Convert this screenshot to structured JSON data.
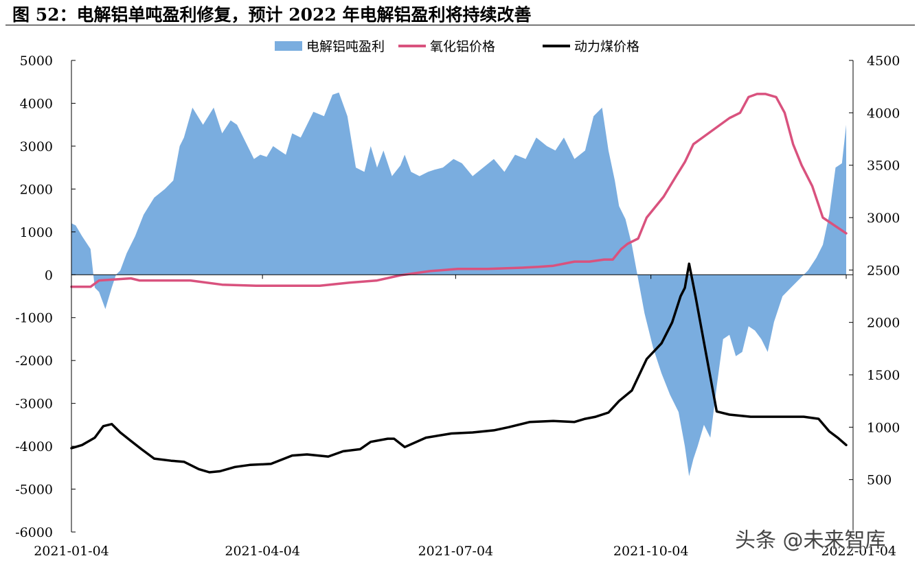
{
  "figure_title": "图 52：电解铝单吨盈利修复，预计 2022 年电解铝盈利将持续改善",
  "watermark": "头条 @未来智库",
  "colors": {
    "profit": "#7aaddf",
    "alumina": "#d9527e",
    "coal": "#000000"
  },
  "chart_data": {
    "type": "area+line",
    "legend_position": "top-center",
    "grid": false,
    "x_ticks": [
      "2021-01-04",
      "2021-04-04",
      "2021-07-04",
      "2021-10-04",
      "2022-01-04"
    ],
    "left_axis": {
      "ylim": [
        -6000,
        5000
      ],
      "ticks": [
        5000,
        4000,
        3000,
        2000,
        1000,
        0,
        -1000,
        -2000,
        -3000,
        -4000,
        -5000,
        -6000
      ]
    },
    "right_axis": {
      "ylim": [
        0,
        4500
      ],
      "ticks": [
        4500,
        4000,
        3500,
        3000,
        2500,
        2000,
        1500,
        1000,
        500,
        0
      ],
      "visible_ticks": [
        4500,
        4000,
        3500,
        3000,
        2500,
        2000,
        1500,
        1000,
        500
      ]
    },
    "series": [
      {
        "name": "电解铝吨盈利",
        "type": "area",
        "axis": "left",
        "x": [
          "2021-01-04",
          "2021-01-06",
          "2021-01-09",
          "2021-01-13",
          "2021-01-15",
          "2021-01-17",
          "2021-01-20",
          "2021-01-23",
          "2021-01-25",
          "2021-01-27",
          "2021-01-30",
          "2021-02-03",
          "2021-02-07",
          "2021-02-12",
          "2021-02-17",
          "2021-02-21",
          "2021-02-24",
          "2021-02-26",
          "2021-03-02",
          "2021-03-07",
          "2021-03-12",
          "2021-03-16",
          "2021-03-20",
          "2021-03-23",
          "2021-03-26",
          "2021-03-28",
          "2021-03-31",
          "2021-04-03",
          "2021-04-06",
          "2021-04-09",
          "2021-04-12",
          "2021-04-15",
          "2021-04-18",
          "2021-04-22",
          "2021-04-25",
          "2021-04-28",
          "2021-05-03",
          "2021-05-07",
          "2021-05-10",
          "2021-05-14",
          "2021-05-18",
          "2021-05-22",
          "2021-05-25",
          "2021-05-28",
          "2021-05-31",
          "2021-06-04",
          "2021-06-08",
          "2021-06-10",
          "2021-06-13",
          "2021-06-17",
          "2021-06-21",
          "2021-06-24",
          "2021-06-28",
          "2021-07-03",
          "2021-07-07",
          "2021-07-12",
          "2021-07-17",
          "2021-07-22",
          "2021-07-27",
          "2021-08-01",
          "2021-08-06",
          "2021-08-11",
          "2021-08-16",
          "2021-08-20",
          "2021-08-24",
          "2021-08-29",
          "2021-09-03",
          "2021-09-07",
          "2021-09-11",
          "2021-09-14",
          "2021-09-17",
          "2021-09-19",
          "2021-09-22",
          "2021-09-25",
          "2021-09-28",
          "2021-10-01",
          "2021-10-05",
          "2021-10-09",
          "2021-10-13",
          "2021-10-17",
          "2021-10-20",
          "2021-10-22",
          "2021-10-24",
          "2021-10-26",
          "2021-10-29",
          "2021-11-01",
          "2021-11-04",
          "2021-11-07",
          "2021-11-10",
          "2021-11-13",
          "2021-11-16",
          "2021-11-19",
          "2021-11-22",
          "2021-11-25",
          "2021-11-28",
          "2021-12-01",
          "2021-12-05",
          "2021-12-09",
          "2021-12-13",
          "2021-12-17",
          "2021-12-21",
          "2021-12-24",
          "2021-12-27",
          "2021-12-30",
          "2022-01-02",
          "2022-01-04"
        ],
        "values": [
          1200,
          1150,
          900,
          600,
          -300,
          -400,
          -800,
          -300,
          0,
          100,
          500,
          900,
          1400,
          1800,
          2000,
          2200,
          3000,
          3200,
          3900,
          3500,
          3900,
          3300,
          3600,
          3500,
          3200,
          3000,
          2700,
          2800,
          2750,
          3000,
          2900,
          2800,
          3300,
          3200,
          3500,
          3800,
          3700,
          4200,
          4250,
          3700,
          2500,
          2400,
          3000,
          2500,
          2900,
          2300,
          2550,
          2800,
          2400,
          2300,
          2400,
          2450,
          2500,
          2700,
          2600,
          2300,
          2500,
          2700,
          2400,
          2800,
          2700,
          3200,
          3000,
          2900,
          3200,
          2700,
          2900,
          3700,
          3900,
          2900,
          2200,
          1600,
          1300,
          700,
          -100,
          -900,
          -1700,
          -2300,
          -2800,
          -3200,
          -4000,
          -4700,
          -4300,
          -4000,
          -3500,
          -3800,
          -2600,
          -1500,
          -1400,
          -1900,
          -1800,
          -1200,
          -1300,
          -1500,
          -1800,
          -1100,
          -500,
          -300,
          -100,
          100,
          400,
          700,
          1400,
          2500,
          2600,
          3500
        ]
      },
      {
        "name": "氧化铝价格",
        "type": "line",
        "axis": "right",
        "x": [
          "2021-01-04",
          "2021-01-13",
          "2021-01-17",
          "2021-02-01",
          "2021-02-05",
          "2021-03-01",
          "2021-03-16",
          "2021-04-01",
          "2021-04-15",
          "2021-05-01",
          "2021-05-15",
          "2021-05-28",
          "2021-06-08",
          "2021-06-22",
          "2021-07-05",
          "2021-07-19",
          "2021-08-02",
          "2021-08-12",
          "2021-08-19",
          "2021-08-29",
          "2021-09-05",
          "2021-09-12",
          "2021-09-16",
          "2021-09-20",
          "2021-09-23",
          "2021-09-28",
          "2021-10-02",
          "2021-10-10",
          "2021-10-16",
          "2021-10-20",
          "2021-10-24",
          "2021-11-10",
          "2021-11-15",
          "2021-11-19",
          "2021-11-23",
          "2021-11-27",
          "2021-12-02",
          "2021-12-06",
          "2021-12-10",
          "2021-12-14",
          "2021-12-19",
          "2021-12-24",
          "2022-01-04"
        ],
        "values": [
          2340,
          2340,
          2400,
          2420,
          2400,
          2400,
          2360,
          2350,
          2350,
          2350,
          2380,
          2400,
          2450,
          2490,
          2510,
          2510,
          2520,
          2530,
          2540,
          2580,
          2580,
          2600,
          2600,
          2700,
          2750,
          2800,
          3000,
          3200,
          3400,
          3530,
          3700,
          3950,
          4000,
          4150,
          4180,
          4180,
          4150,
          4000,
          3700,
          3500,
          3300,
          3000,
          2850
        ]
      },
      {
        "name": "动力煤价格",
        "type": "line",
        "axis": "right",
        "x": [
          "2021-01-04",
          "2021-01-09",
          "2021-01-15",
          "2021-01-19",
          "2021-01-23",
          "2021-01-27",
          "2021-02-01",
          "2021-02-06",
          "2021-02-12",
          "2021-02-20",
          "2021-02-26",
          "2021-03-05",
          "2021-03-10",
          "2021-03-15",
          "2021-03-22",
          "2021-03-29",
          "2021-04-08",
          "2021-04-18",
          "2021-04-25",
          "2021-05-05",
          "2021-05-12",
          "2021-05-20",
          "2021-05-25",
          "2021-06-02",
          "2021-06-05",
          "2021-06-10",
          "2021-06-20",
          "2021-07-02",
          "2021-07-12",
          "2021-07-22",
          "2021-07-29",
          "2021-08-08",
          "2021-08-19",
          "2021-08-29",
          "2021-09-03",
          "2021-09-08",
          "2021-09-14",
          "2021-09-19",
          "2021-09-25",
          "2021-10-02",
          "2021-10-09",
          "2021-10-14",
          "2021-10-18",
          "2021-10-20",
          "2021-10-22",
          "2021-10-25",
          "2021-10-30",
          "2021-11-04",
          "2021-11-10",
          "2021-11-20",
          "2021-12-05",
          "2021-12-15",
          "2021-12-22",
          "2021-12-27",
          "2021-12-31",
          "2022-01-04"
        ],
        "values": [
          800,
          830,
          900,
          1010,
          1030,
          950,
          870,
          790,
          700,
          680,
          670,
          600,
          570,
          580,
          620,
          640,
          650,
          730,
          740,
          720,
          770,
          790,
          860,
          890,
          890,
          810,
          900,
          940,
          950,
          970,
          1000,
          1050,
          1060,
          1050,
          1080,
          1100,
          1140,
          1250,
          1350,
          1650,
          1800,
          2000,
          2250,
          2330,
          2560,
          2250,
          1700,
          1150,
          1120,
          1100,
          1100,
          1100,
          1080,
          960,
          900,
          830
        ]
      }
    ]
  }
}
